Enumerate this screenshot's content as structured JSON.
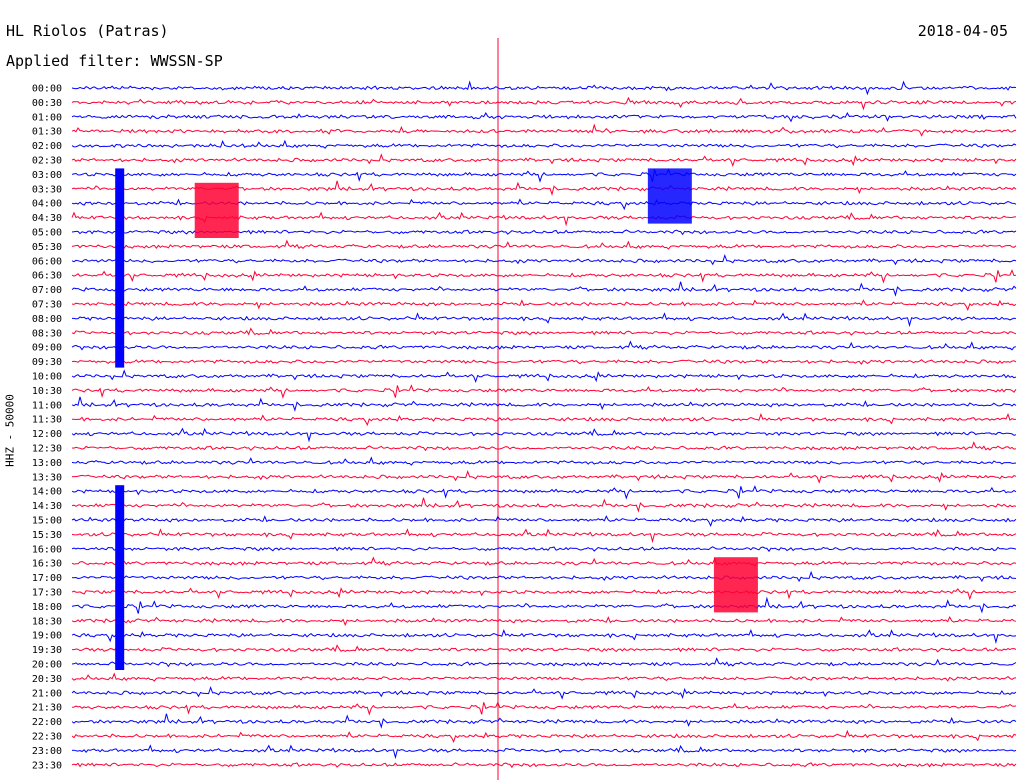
{
  "header": {
    "station": "HL Riolos (Patras)",
    "date": "2018-04-05",
    "filter": "Applied filter: WWSSN-SP",
    "channel_label": "HHZ - 50000"
  },
  "chart_data": {
    "type": "line",
    "chart_kind": "helicorder",
    "title": "HL Riolos (Patras)",
    "date": "2018-04-05",
    "filter": "WWSSN-SP",
    "ylabel": "HHZ - 50000",
    "xlabel": "",
    "row_interval_minutes": 30,
    "tick_labels": [
      "00:00",
      "00:30",
      "01:00",
      "01:30",
      "02:00",
      "02:30",
      "03:00",
      "03:30",
      "04:00",
      "04:30",
      "05:00",
      "05:30",
      "06:00",
      "06:30",
      "07:00",
      "07:30",
      "08:00",
      "08:30",
      "09:00",
      "09:30",
      "10:00",
      "10:30",
      "11:00",
      "11:30",
      "12:00",
      "12:30",
      "13:00",
      "13:30",
      "14:00",
      "14:30",
      "15:00",
      "15:30",
      "16:00",
      "16:30",
      "17:00",
      "17:30",
      "18:00",
      "18:30",
      "19:00",
      "19:30",
      "20:00",
      "20:30",
      "21:00",
      "21:30",
      "22:00",
      "22:30",
      "23:00",
      "23:30"
    ],
    "series_colors": [
      "#0000ff",
      "#ff0033"
    ],
    "events": [
      {
        "row_start": 6,
        "row_end": 19,
        "t": 0.05,
        "type": "spike"
      },
      {
        "row_start": 7,
        "row_end": 10,
        "t": 0.13,
        "type": "block"
      },
      {
        "row_start": 6,
        "row_end": 9,
        "t": 0.61,
        "type": "block"
      },
      {
        "row_start": 33,
        "row_end": 36,
        "t": 0.68,
        "type": "block"
      },
      {
        "row_start": 28,
        "row_end": 40,
        "t": 0.05,
        "type": "spike"
      }
    ],
    "grid": false,
    "legend": "none"
  }
}
